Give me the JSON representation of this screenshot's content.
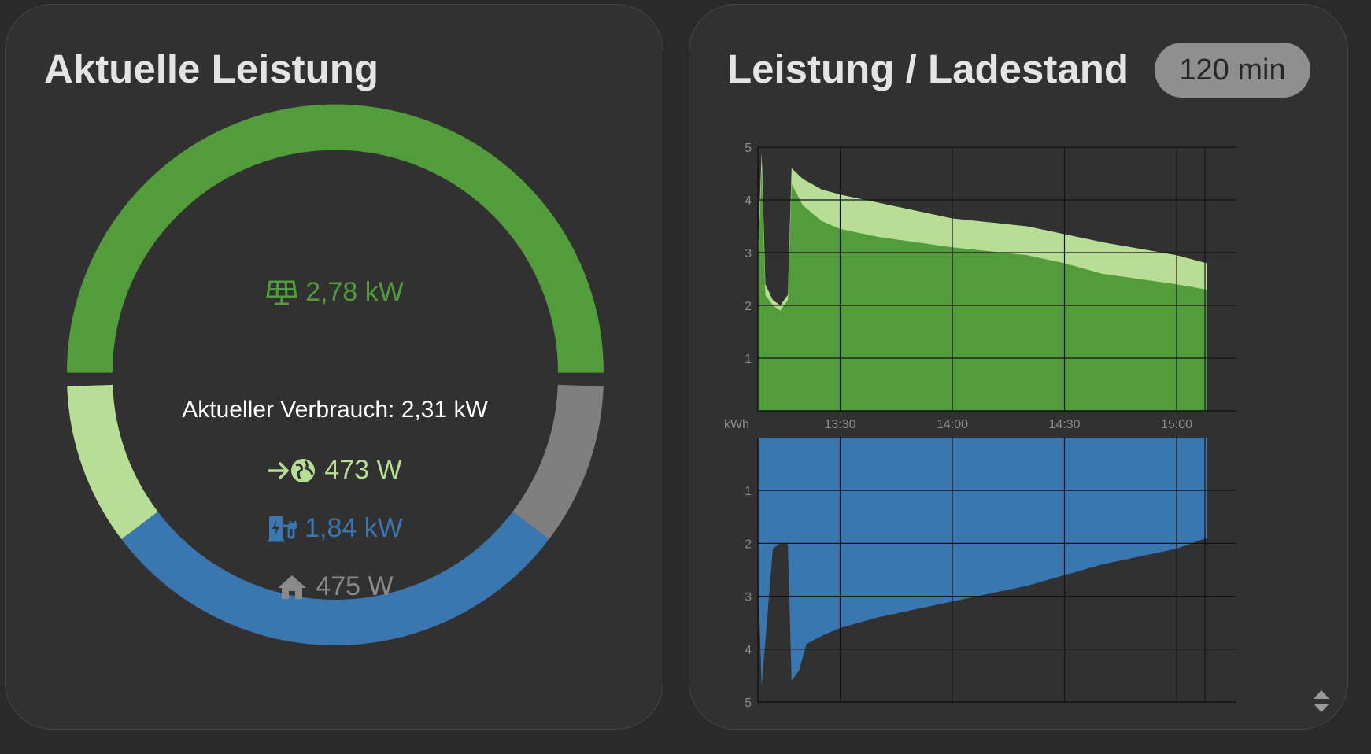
{
  "colors": {
    "solar": "#529c3c",
    "export": "#b8dd94",
    "battery": "#3a76b0",
    "grid": "#7f7f7f",
    "house": "#8a8a8a",
    "loss": "#a23c3c",
    "text": "#ffffff"
  },
  "left_card": {
    "title": "Aktuelle Leistung",
    "solar": {
      "icon": "solar-panel-icon",
      "value": "2,78 kW"
    },
    "consumption": {
      "label": "Aktueller Verbrauch: 2,31 kW"
    },
    "export": {
      "icon": "arrow-to-globe-icon",
      "value": "473 W"
    },
    "battery": {
      "icon": "charging-station-icon",
      "value": "1,84 kW"
    },
    "house": {
      "icon": "house-icon",
      "value": "475 W"
    },
    "gauge": {
      "top_arc": {
        "series": "solar",
        "fraction": 1.0
      },
      "bottom_arc": [
        {
          "series": "export",
          "fraction": 0.2
        },
        {
          "series": "battery",
          "fraction": 0.6
        },
        {
          "series": "grid",
          "fraction": 0.2
        }
      ]
    }
  },
  "right_card": {
    "title": "Leistung / Ladestand",
    "range_button": "120 min",
    "chart_data": [
      {
        "type": "area",
        "title": "",
        "ylabel": "",
        "ylim": [
          0,
          5
        ],
        "y_ticks": [
          "1",
          "2",
          "3",
          "4",
          "5"
        ],
        "x_ticks": [
          "13:30",
          "14:00",
          "14:30",
          "15:00"
        ],
        "x_range": [
          "13:08",
          "15:16"
        ],
        "grid": true,
        "series": [
          {
            "color": "#b8dd94",
            "x": [
              "13:08",
              "13:09",
              "13:10",
              "13:12",
              "13:14",
              "13:16",
              "13:17",
              "13:20",
              "13:25",
              "13:30",
              "13:40",
              "14:00",
              "14:20",
              "14:30",
              "14:40",
              "15:00",
              "15:08"
            ],
            "values": [
              3.0,
              4.9,
              2.4,
              2.1,
              2.0,
              2.2,
              4.6,
              4.4,
              4.2,
              4.1,
              3.95,
              3.65,
              3.5,
              3.35,
              3.2,
              2.95,
              2.8
            ]
          },
          {
            "color": "#529c3c",
            "x": [
              "13:08",
              "13:09",
              "13:10",
              "13:12",
              "13:14",
              "13:16",
              "13:17",
              "13:20",
              "13:25",
              "13:30",
              "13:40",
              "14:00",
              "14:20",
              "14:30",
              "14:40",
              "15:00",
              "15:08"
            ],
            "values": [
              2.8,
              4.6,
              2.2,
              2.0,
              1.9,
              2.1,
              4.3,
              3.9,
              3.6,
              3.45,
              3.3,
              3.1,
              2.95,
              2.8,
              2.6,
              2.4,
              2.3
            ]
          }
        ]
      },
      {
        "type": "area",
        "title": "",
        "ylabel": "kWh",
        "ylim": [
          0,
          5
        ],
        "y_inverted": true,
        "y_ticks": [
          "1",
          "2",
          "3",
          "4",
          "5"
        ],
        "x_range": [
          "13:08",
          "15:16"
        ],
        "grid": true,
        "series": [
          {
            "color": "#7f7f7f",
            "x": [
              "13:08",
              "13:10",
              "13:15",
              "13:20",
              "13:30",
              "14:00",
              "14:30",
              "15:00",
              "15:08"
            ],
            "values": [
              0.5,
              0.5,
              0.5,
              0.5,
              0.45,
              0.45,
              0.45,
              0.45,
              0.45
            ]
          },
          {
            "color": "#3a76b0",
            "x": [
              "13:08",
              "13:09",
              "13:12",
              "13:14",
              "13:16",
              "13:17",
              "13:19",
              "13:21",
              "13:25",
              "13:30",
              "13:40",
              "14:00",
              "14:20",
              "14:30",
              "14:40",
              "15:00",
              "15:08"
            ],
            "values": [
              2.5,
              4.7,
              2.1,
              2.0,
              2.0,
              4.6,
              4.4,
              3.9,
              3.75,
              3.6,
              3.4,
              3.1,
              2.8,
              2.6,
              2.4,
              2.1,
              1.9
            ]
          }
        ]
      }
    ]
  }
}
